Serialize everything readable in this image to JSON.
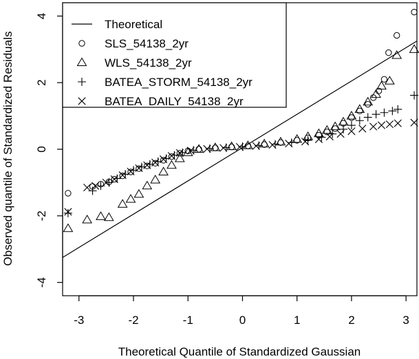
{
  "chart_data": {
    "type": "scatter",
    "title": "",
    "xlabel": "Theoretical Quantile of Standardized Gaussian",
    "ylabel": "Observed quantile of Standardized Residuals",
    "xlim": [
      -3.3,
      3.2
    ],
    "ylim": [
      -4.4,
      4.4
    ],
    "xticks": [
      -3,
      -2,
      -1,
      0,
      1,
      2,
      3
    ],
    "yticks": [
      -4,
      -2,
      0,
      2,
      4
    ],
    "grid": false,
    "legend_position": "top-left",
    "theoretical_line": {
      "name": "Theoretical",
      "x": [
        -3.3,
        3.2
      ],
      "y": [
        -3.25,
        3.25
      ]
    },
    "series": [
      {
        "name": "SLS_54138_2yr",
        "marker": "circle",
        "points": [
          [
            -3.2,
            -1.32
          ],
          [
            -2.75,
            -1.12
          ],
          [
            -2.6,
            -1.05
          ],
          [
            -2.45,
            -0.98
          ],
          [
            -2.35,
            -0.9
          ],
          [
            -2.2,
            -0.8
          ],
          [
            -2.05,
            -0.68
          ],
          [
            -1.9,
            -0.58
          ],
          [
            -1.75,
            -0.5
          ],
          [
            -1.6,
            -0.42
          ],
          [
            -1.45,
            -0.33
          ],
          [
            -1.3,
            -0.22
          ],
          [
            -1.15,
            -0.12
          ],
          [
            -1.0,
            -0.05
          ],
          [
            -0.8,
            0.0
          ],
          [
            -0.5,
            0.04
          ],
          [
            -0.2,
            0.07
          ],
          [
            0.1,
            0.1
          ],
          [
            0.4,
            0.14
          ],
          [
            0.7,
            0.2
          ],
          [
            1.0,
            0.27
          ],
          [
            1.2,
            0.34
          ],
          [
            1.4,
            0.42
          ],
          [
            1.55,
            0.52
          ],
          [
            1.7,
            0.62
          ],
          [
            1.85,
            0.78
          ],
          [
            2.0,
            0.95
          ],
          [
            2.15,
            1.15
          ],
          [
            2.3,
            1.35
          ],
          [
            2.4,
            1.55
          ],
          [
            2.5,
            1.75
          ],
          [
            2.6,
            2.1
          ],
          [
            2.68,
            2.9
          ],
          [
            2.83,
            3.42
          ],
          [
            3.15,
            4.12
          ]
        ]
      },
      {
        "name": "WLS_54138_2yr",
        "marker": "triangle",
        "points": [
          [
            -3.2,
            -2.38
          ],
          [
            -2.85,
            -2.12
          ],
          [
            -2.6,
            -2.02
          ],
          [
            -2.45,
            -2.05
          ],
          [
            -2.2,
            -1.65
          ],
          [
            -2.05,
            -1.5
          ],
          [
            -1.9,
            -1.35
          ],
          [
            -1.75,
            -1.1
          ],
          [
            -1.6,
            -0.92
          ],
          [
            -1.45,
            -0.68
          ],
          [
            -1.3,
            -0.48
          ],
          [
            -1.15,
            -0.28
          ],
          [
            -1.0,
            -0.1
          ],
          [
            -0.8,
            0.0
          ],
          [
            -0.5,
            0.05
          ],
          [
            -0.2,
            0.08
          ],
          [
            0.1,
            0.11
          ],
          [
            0.4,
            0.16
          ],
          [
            0.7,
            0.22
          ],
          [
            1.0,
            0.3
          ],
          [
            1.2,
            0.38
          ],
          [
            1.4,
            0.47
          ],
          [
            1.55,
            0.57
          ],
          [
            1.7,
            0.68
          ],
          [
            1.85,
            0.82
          ],
          [
            2.0,
            1.0
          ],
          [
            2.15,
            1.2
          ],
          [
            2.3,
            1.42
          ],
          [
            2.45,
            1.65
          ],
          [
            2.55,
            1.9
          ],
          [
            2.7,
            2.05
          ],
          [
            2.83,
            2.82
          ],
          [
            3.15,
            3.0
          ]
        ]
      },
      {
        "name": "BATEA_STORM_54138_2yr",
        "marker": "plus",
        "points": [
          [
            -3.2,
            -1.92
          ],
          [
            -2.75,
            -1.25
          ],
          [
            -2.6,
            -1.1
          ],
          [
            -2.45,
            -1.0
          ],
          [
            -2.3,
            -0.88
          ],
          [
            -2.15,
            -0.75
          ],
          [
            -2.0,
            -0.63
          ],
          [
            -1.85,
            -0.53
          ],
          [
            -1.7,
            -0.45
          ],
          [
            -1.55,
            -0.37
          ],
          [
            -1.4,
            -0.28
          ],
          [
            -1.25,
            -0.18
          ],
          [
            -1.1,
            -0.1
          ],
          [
            -0.9,
            -0.03
          ],
          [
            -0.6,
            0.02
          ],
          [
            -0.3,
            0.05
          ],
          [
            0.0,
            0.08
          ],
          [
            0.3,
            0.11
          ],
          [
            0.6,
            0.15
          ],
          [
            0.9,
            0.2
          ],
          [
            1.2,
            0.27
          ],
          [
            1.45,
            0.36
          ],
          [
            1.65,
            0.46
          ],
          [
            1.85,
            0.6
          ],
          [
            2.0,
            0.72
          ],
          [
            2.15,
            0.86
          ],
          [
            2.3,
            0.96
          ],
          [
            2.45,
            1.05
          ],
          [
            2.6,
            1.1
          ],
          [
            2.75,
            1.15
          ],
          [
            2.85,
            1.2
          ],
          [
            3.15,
            1.62
          ]
        ]
      },
      {
        "name": "BATEA_DAILY_54138_2yr",
        "marker": "cross",
        "points": [
          [
            -3.2,
            -1.88
          ],
          [
            -2.85,
            -1.15
          ],
          [
            -2.7,
            -1.1
          ],
          [
            -2.5,
            -1.0
          ],
          [
            -2.35,
            -0.9
          ],
          [
            -2.2,
            -0.78
          ],
          [
            -2.05,
            -0.67
          ],
          [
            -1.9,
            -0.57
          ],
          [
            -1.75,
            -0.48
          ],
          [
            -1.6,
            -0.4
          ],
          [
            -1.45,
            -0.3
          ],
          [
            -1.3,
            -0.2
          ],
          [
            -1.15,
            -0.11
          ],
          [
            -0.95,
            -0.04
          ],
          [
            -0.65,
            0.01
          ],
          [
            -0.35,
            0.04
          ],
          [
            -0.05,
            0.07
          ],
          [
            0.25,
            0.1
          ],
          [
            0.55,
            0.13
          ],
          [
            0.85,
            0.17
          ],
          [
            1.15,
            0.23
          ],
          [
            1.4,
            0.3
          ],
          [
            1.6,
            0.38
          ],
          [
            1.8,
            0.46
          ],
          [
            2.0,
            0.54
          ],
          [
            2.2,
            0.62
          ],
          [
            2.4,
            0.68
          ],
          [
            2.55,
            0.72
          ],
          [
            2.7,
            0.75
          ],
          [
            2.85,
            0.78
          ],
          [
            3.15,
            0.8
          ]
        ]
      }
    ]
  }
}
